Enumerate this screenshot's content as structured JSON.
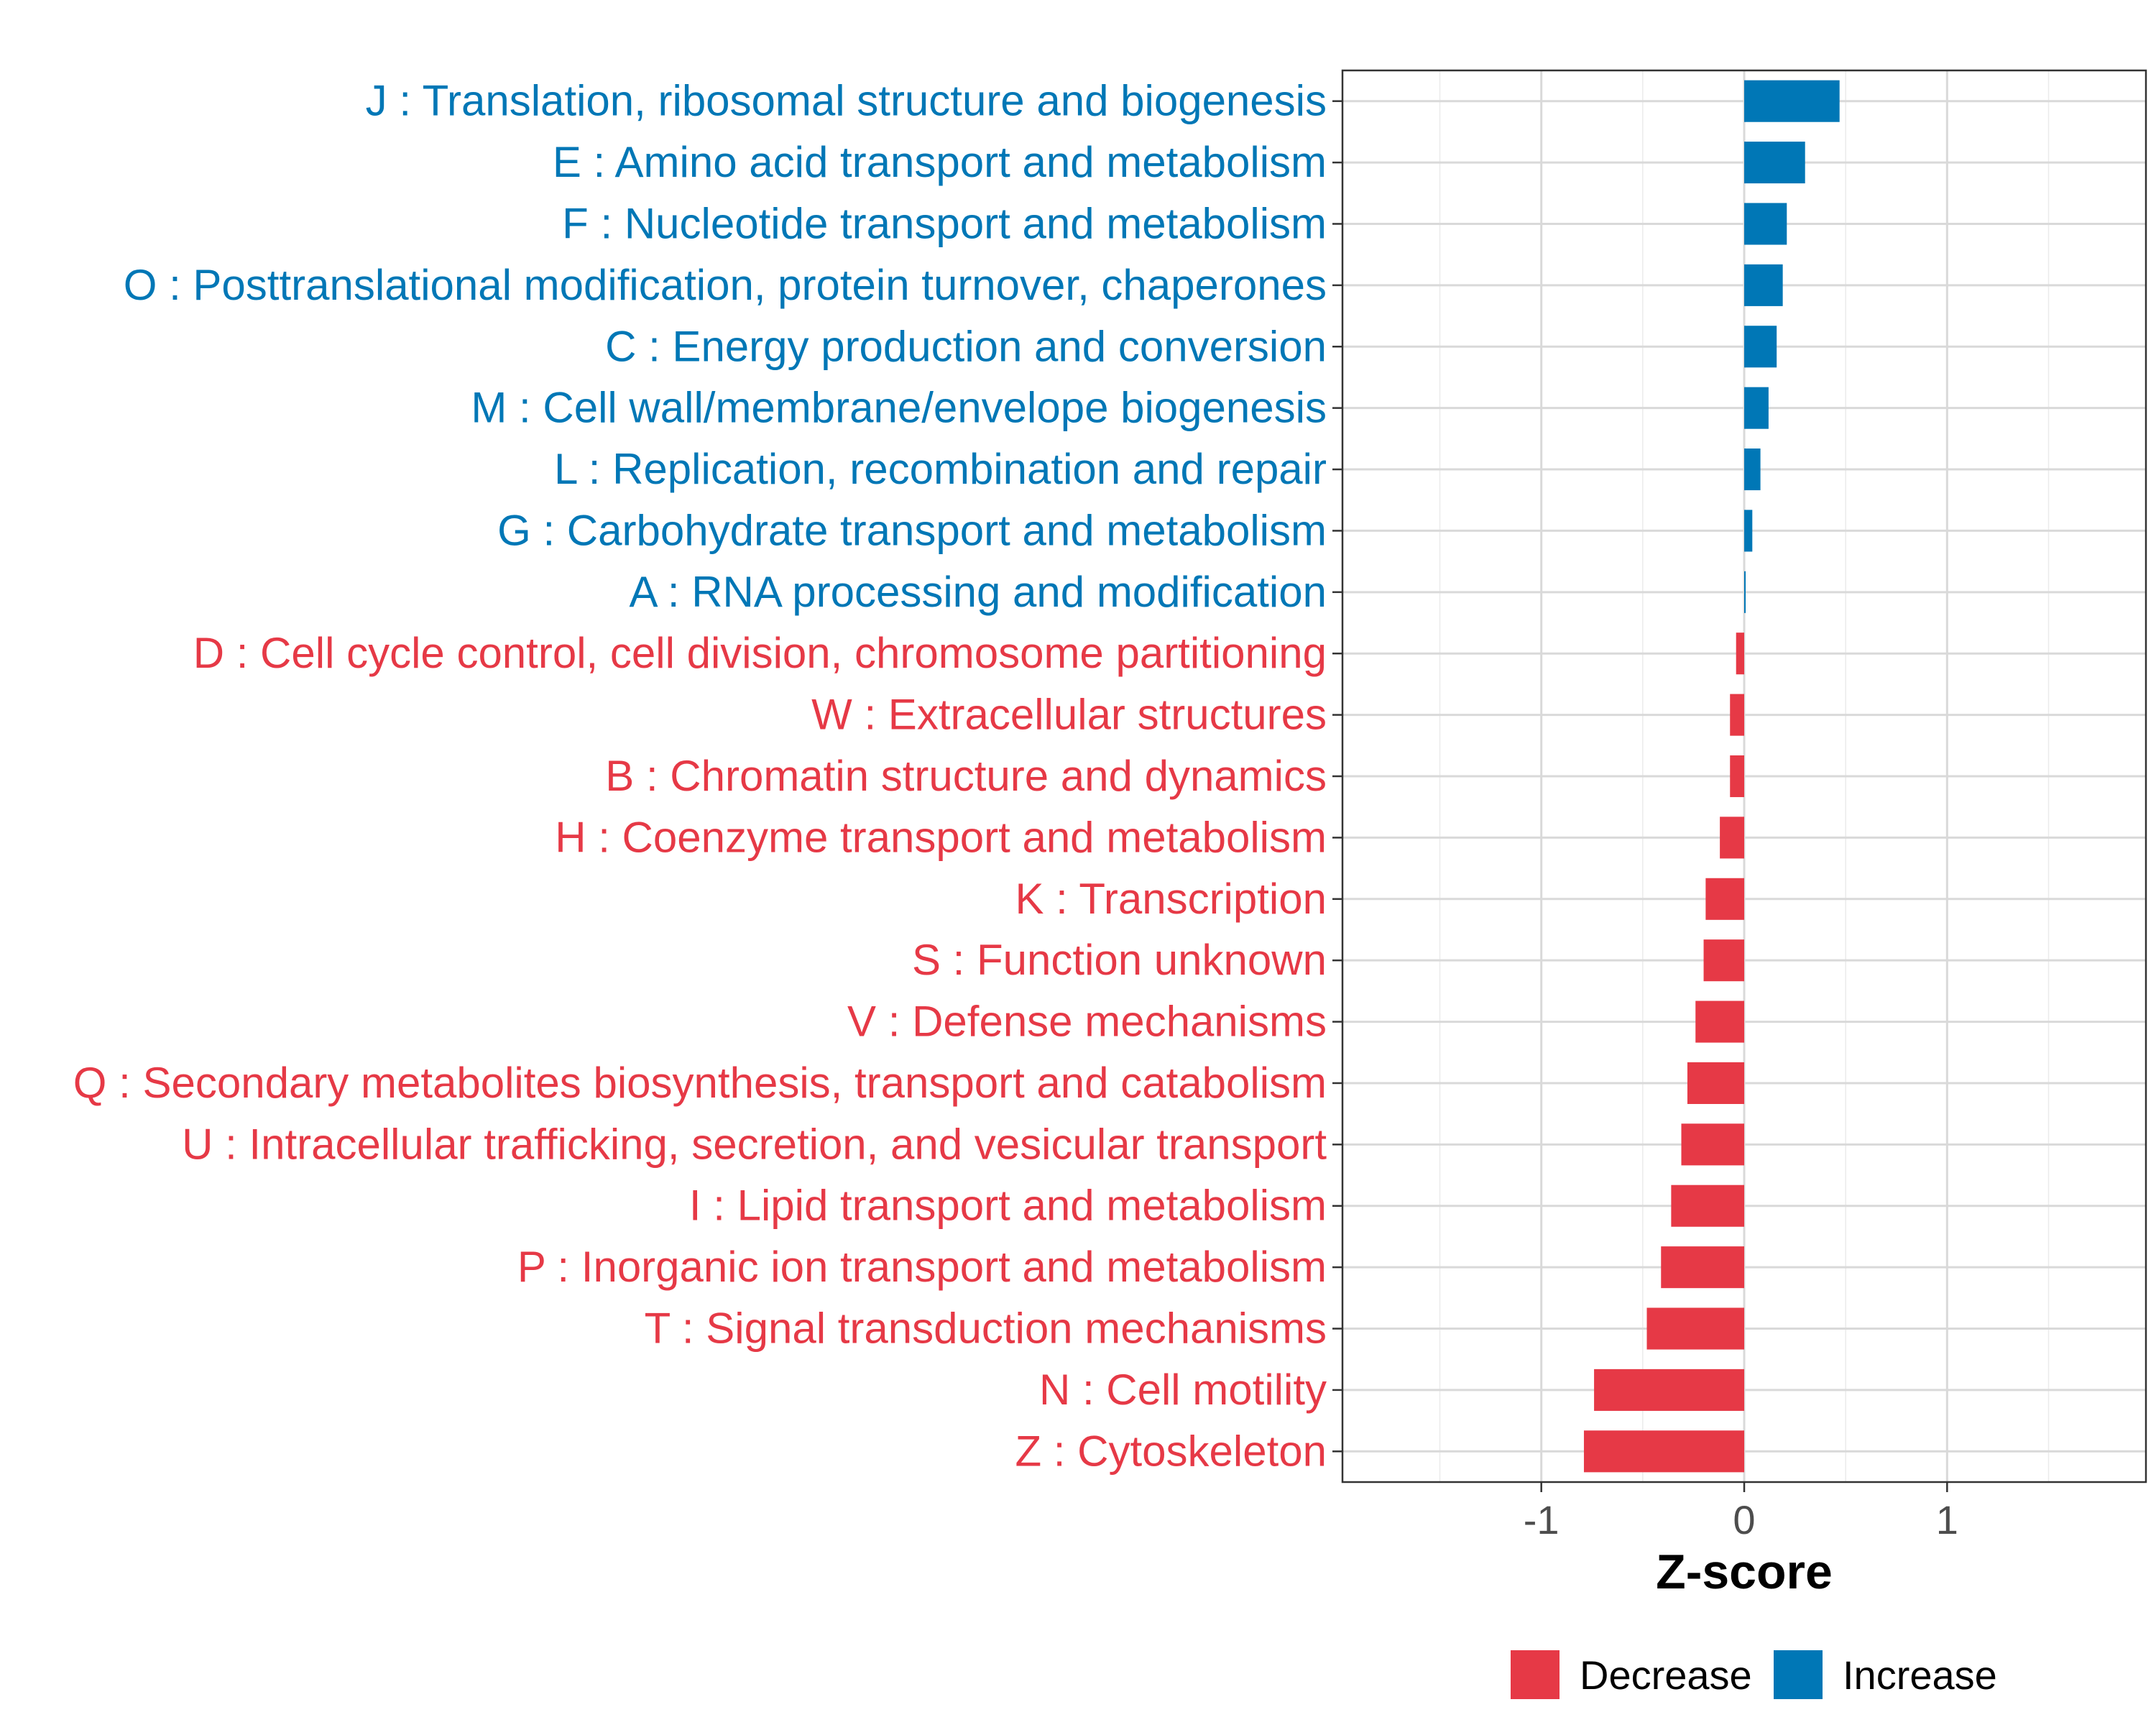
{
  "chart_data": {
    "type": "bar",
    "orientation": "horizontal",
    "xlabel": "Z-score",
    "ylabel": "",
    "xlim": [
      -1.98,
      1.98
    ],
    "xticks": [
      -1,
      0,
      1
    ],
    "xtick_labels": [
      "-1",
      "0",
      "1"
    ],
    "grid": true,
    "legend_position": "bottom",
    "legend": [
      {
        "label": "Decrease",
        "color": "#E63946"
      },
      {
        "label": "Increase",
        "color": "#0077B6"
      }
    ],
    "categories": [
      "J : Translation, ribosomal structure and biogenesis",
      "E : Amino acid transport and metabolism",
      "F : Nucleotide transport and metabolism",
      "O : Posttranslational modification, protein turnover, chaperones",
      "C : Energy production and conversion",
      "M : Cell wall/membrane/envelope biogenesis",
      "L : Replication, recombination and repair",
      "G : Carbohydrate transport and metabolism",
      "A : RNA processing and modification",
      "D : Cell cycle control, cell division, chromosome partitioning",
      "W : Extracellular structures",
      "B : Chromatin structure and dynamics",
      "H : Coenzyme transport and metabolism",
      "K : Transcription",
      "S : Function unknown",
      "V : Defense mechanisms",
      "Q : Secondary metabolites biosynthesis, transport and catabolism",
      "U : Intracellular trafficking, secretion, and vesicular transport",
      "I : Lipid transport and metabolism",
      "P : Inorganic ion transport and metabolism",
      "T : Signal transduction mechanisms",
      "N : Cell motility",
      "Z : Cytoskeleton"
    ],
    "values": [
      0.47,
      0.3,
      0.21,
      0.19,
      0.16,
      0.12,
      0.08,
      0.04,
      0.005,
      -0.04,
      -0.07,
      -0.07,
      -0.12,
      -0.19,
      -0.2,
      -0.24,
      -0.28,
      -0.31,
      -0.36,
      -0.41,
      -0.48,
      -0.74,
      -0.79
    ],
    "colors": {
      "increase": "#0077B6",
      "decrease": "#E63946"
    }
  }
}
